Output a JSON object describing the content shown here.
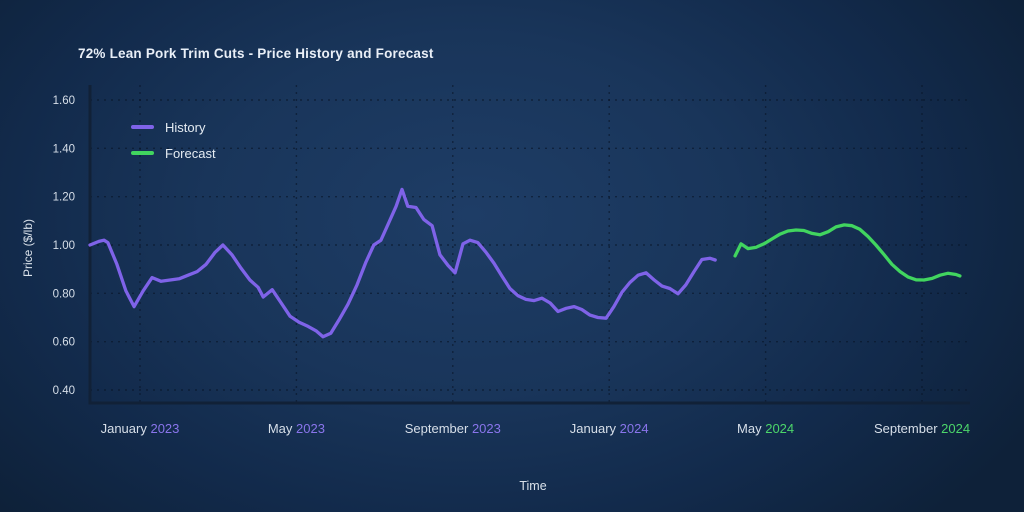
{
  "title": "72% Lean Pork Trim Cuts - Price History and Forecast",
  "legend": [
    {
      "label": "History",
      "color": "#7f63e8"
    },
    {
      "label": "Forecast",
      "color": "#41d55f"
    }
  ],
  "colors": {
    "history_line": "#7f63e8",
    "forecast_line": "#41d55f",
    "year_2023_text": "#8a75ec",
    "year_2024_green_text": "#4cd66a",
    "axis_line": "#112137",
    "gridline": "rgba(8,20,38,0.6)"
  },
  "chart_data": {
    "type": "line",
    "title": "72% Lean Pork Trim Cuts - Price History and Forecast",
    "xlabel": "Time",
    "ylabel": "Price ($/lb)",
    "ylim": [
      0.35,
      1.66
    ],
    "grid": "dotted both axes",
    "legend_position": "upper-left inside plot",
    "yticks": [
      {
        "value": 1.6,
        "label": "1.60"
      },
      {
        "value": 1.4,
        "label": "1.40"
      },
      {
        "value": 1.2,
        "label": "1.20"
      },
      {
        "value": 1.0,
        "label": "1.00"
      },
      {
        "value": 0.8,
        "label": "0.80"
      },
      {
        "value": 0.6,
        "label": "0.60"
      },
      {
        "value": 0.4,
        "label": "0.40"
      }
    ],
    "xticks": [
      {
        "t": 0,
        "month": "January",
        "year": "2023",
        "year_color": "#8a75ec"
      },
      {
        "t": 4,
        "month": "May",
        "year": "2023",
        "year_color": "#8a75ec"
      },
      {
        "t": 8,
        "month": "September",
        "year": "2023",
        "year_color": "#8a75ec"
      },
      {
        "t": 12,
        "month": "January",
        "year": "2024",
        "year_color": "#8a75ec"
      },
      {
        "t": 16,
        "month": "May",
        "year": "2024",
        "year_color": "#4cd66a"
      },
      {
        "t": 20,
        "month": "September",
        "year": "2024",
        "year_color": "#4cd66a"
      }
    ],
    "x_unit": "months since January 2023 tick (t=0); data ~weekly",
    "series": [
      {
        "name": "History",
        "color": "#7f63e8",
        "points": [
          [
            -1.28,
            1.0
          ],
          [
            -1.05,
            1.015
          ],
          [
            -0.92,
            1.02
          ],
          [
            -0.82,
            1.01
          ],
          [
            -0.59,
            0.92
          ],
          [
            -0.36,
            0.81
          ],
          [
            -0.15,
            0.745
          ],
          [
            0.08,
            0.81
          ],
          [
            0.31,
            0.865
          ],
          [
            0.54,
            0.85
          ],
          [
            0.77,
            0.855
          ],
          [
            1.0,
            0.86
          ],
          [
            1.23,
            0.875
          ],
          [
            1.46,
            0.89
          ],
          [
            1.69,
            0.92
          ],
          [
            1.92,
            0.97
          ],
          [
            2.12,
            1.0
          ],
          [
            2.35,
            0.96
          ],
          [
            2.58,
            0.905
          ],
          [
            2.81,
            0.855
          ],
          [
            3.02,
            0.825
          ],
          [
            3.15,
            0.785
          ],
          [
            3.38,
            0.815
          ],
          [
            3.61,
            0.76
          ],
          [
            3.84,
            0.705
          ],
          [
            4.07,
            0.68
          ],
          [
            4.3,
            0.663
          ],
          [
            4.5,
            0.645
          ],
          [
            4.68,
            0.62
          ],
          [
            4.88,
            0.635
          ],
          [
            5.09,
            0.69
          ],
          [
            5.32,
            0.755
          ],
          [
            5.55,
            0.835
          ],
          [
            5.78,
            0.93
          ],
          [
            5.98,
            1.0
          ],
          [
            6.16,
            1.02
          ],
          [
            6.37,
            1.095
          ],
          [
            6.55,
            1.16
          ],
          [
            6.7,
            1.23
          ],
          [
            6.85,
            1.16
          ],
          [
            7.06,
            1.155
          ],
          [
            7.26,
            1.105
          ],
          [
            7.47,
            1.08
          ],
          [
            7.67,
            0.96
          ],
          [
            7.88,
            0.915
          ],
          [
            8.06,
            0.885
          ],
          [
            8.26,
            1.005
          ],
          [
            8.44,
            1.02
          ],
          [
            8.64,
            1.01
          ],
          [
            8.85,
            0.97
          ],
          [
            9.05,
            0.925
          ],
          [
            9.26,
            0.87
          ],
          [
            9.46,
            0.82
          ],
          [
            9.67,
            0.79
          ],
          [
            9.87,
            0.775
          ],
          [
            10.08,
            0.77
          ],
          [
            10.28,
            0.78
          ],
          [
            10.49,
            0.76
          ],
          [
            10.69,
            0.725
          ],
          [
            10.9,
            0.738
          ],
          [
            11.1,
            0.745
          ],
          [
            11.3,
            0.733
          ],
          [
            11.51,
            0.71
          ],
          [
            11.71,
            0.7
          ],
          [
            11.92,
            0.697
          ],
          [
            12.12,
            0.745
          ],
          [
            12.33,
            0.805
          ],
          [
            12.53,
            0.845
          ],
          [
            12.74,
            0.875
          ],
          [
            12.94,
            0.885
          ],
          [
            13.15,
            0.855
          ],
          [
            13.35,
            0.83
          ],
          [
            13.55,
            0.82
          ],
          [
            13.76,
            0.798
          ],
          [
            13.96,
            0.835
          ],
          [
            14.17,
            0.89
          ],
          [
            14.37,
            0.94
          ],
          [
            14.58,
            0.945
          ],
          [
            14.71,
            0.938
          ]
        ]
      },
      {
        "name": "Forecast",
        "color": "#41d55f",
        "points": [
          [
            15.22,
            0.955
          ],
          [
            15.37,
            1.005
          ],
          [
            15.55,
            0.985
          ],
          [
            15.75,
            0.99
          ],
          [
            15.96,
            1.005
          ],
          [
            16.16,
            1.025
          ],
          [
            16.37,
            1.045
          ],
          [
            16.57,
            1.058
          ],
          [
            16.78,
            1.062
          ],
          [
            16.98,
            1.06
          ],
          [
            17.19,
            1.048
          ],
          [
            17.39,
            1.042
          ],
          [
            17.6,
            1.055
          ],
          [
            17.8,
            1.075
          ],
          [
            18.01,
            1.083
          ],
          [
            18.21,
            1.08
          ],
          [
            18.41,
            1.065
          ],
          [
            18.62,
            1.035
          ],
          [
            18.82,
            1.0
          ],
          [
            19.03,
            0.96
          ],
          [
            19.23,
            0.92
          ],
          [
            19.44,
            0.89
          ],
          [
            19.64,
            0.868
          ],
          [
            19.85,
            0.856
          ],
          [
            20.05,
            0.855
          ],
          [
            20.26,
            0.862
          ],
          [
            20.46,
            0.875
          ],
          [
            20.66,
            0.883
          ],
          [
            20.87,
            0.878
          ],
          [
            20.97,
            0.872
          ]
        ]
      }
    ]
  }
}
